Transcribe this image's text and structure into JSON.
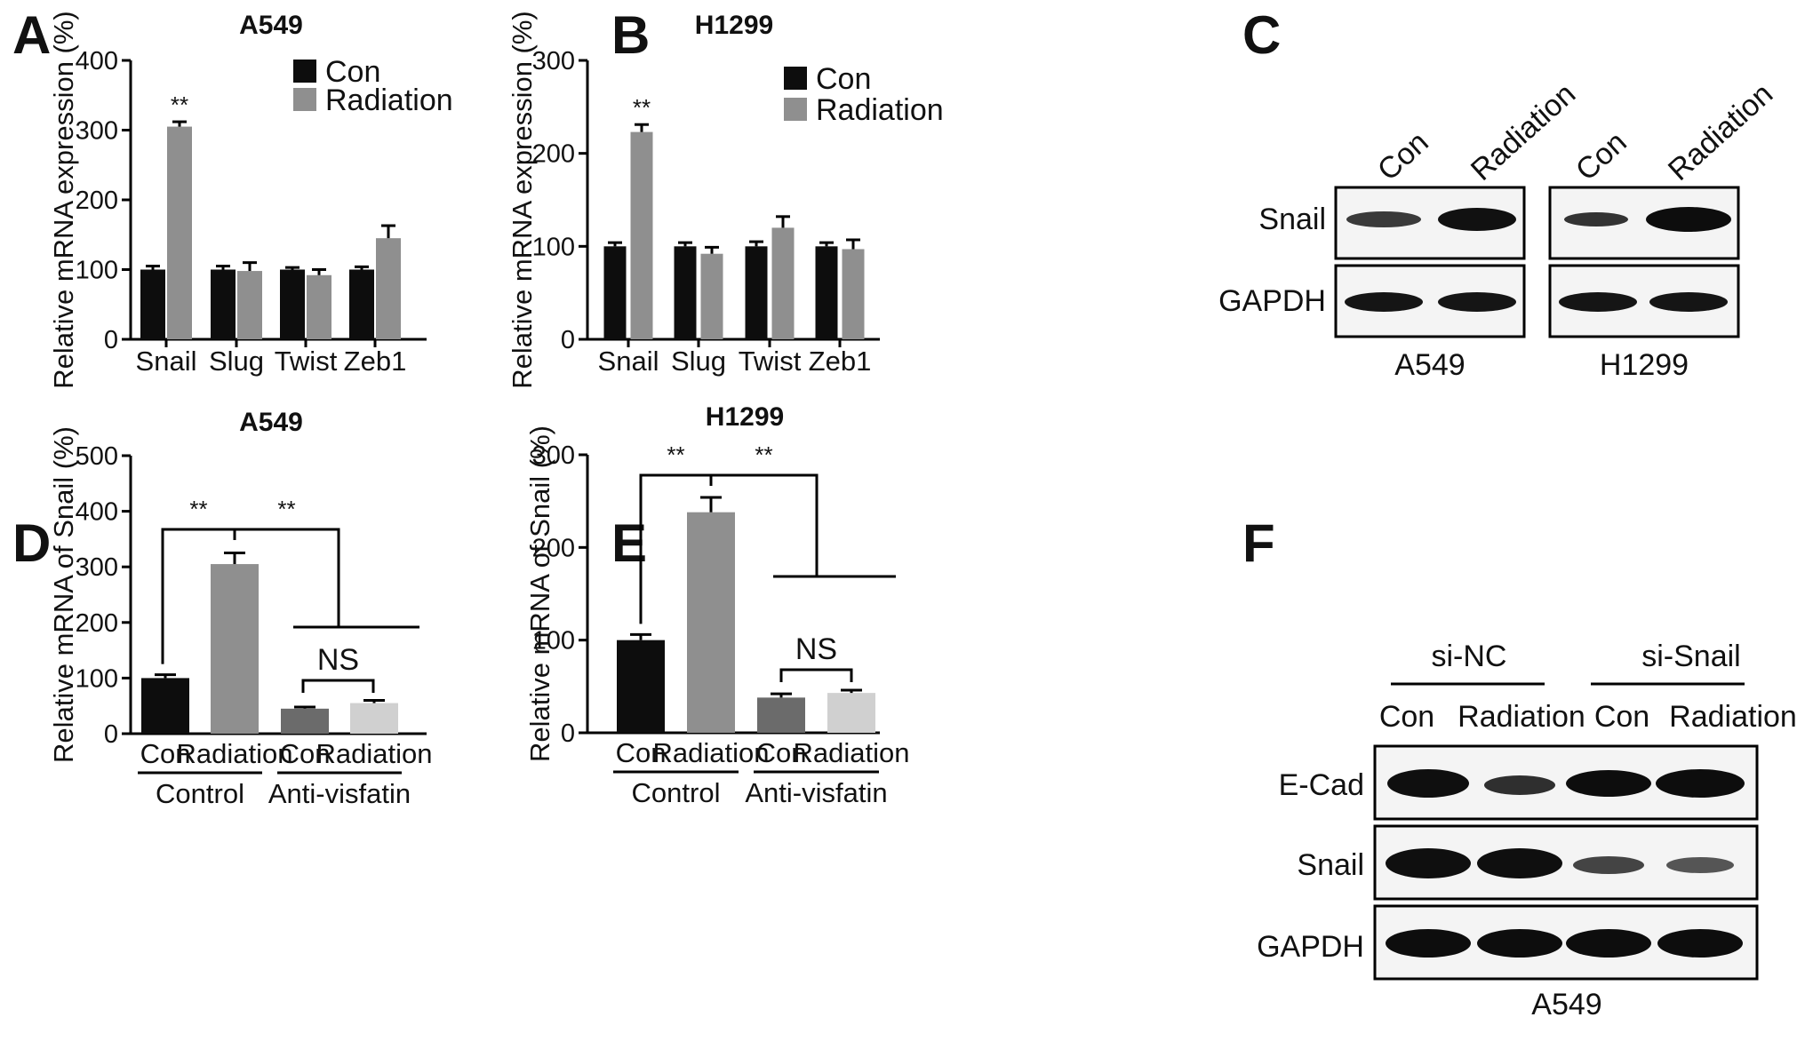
{
  "panels": {
    "A": {
      "letter": "A"
    },
    "B": {
      "letter": "B"
    },
    "C": {
      "letter": "C"
    },
    "D": {
      "letter": "D"
    },
    "E": {
      "letter": "E"
    },
    "F": {
      "letter": "F"
    }
  },
  "colors": {
    "con": "#0d0d0d",
    "radiation": "#8f8f8f",
    "anti_con": "#6b6b6b",
    "anti_radiation": "#d0d0d0"
  },
  "blot_c": {
    "lanes": [
      "Con",
      "Radiation"
    ],
    "rows": [
      "Snail",
      "GAPDH"
    ],
    "cells": [
      "A549",
      "H1299"
    ]
  },
  "blot_f": {
    "groups": [
      "si-NC",
      "si-Snail"
    ],
    "lanes": [
      "Con",
      "Radiation",
      "Con",
      "Radiation"
    ],
    "rows": [
      "E-Cad",
      "Snail",
      "GAPDH"
    ],
    "cell": "A549"
  },
  "chart_data": [
    {
      "id": "A",
      "type": "bar",
      "title": "A549",
      "ylabel": "Relative mRNA expression (%)",
      "xlabel": "",
      "ylim": [
        0,
        400
      ],
      "yticks": [
        0,
        100,
        200,
        300,
        400
      ],
      "categories": [
        "Snail",
        "Slug",
        "Twist",
        "Zeb1"
      ],
      "legend": [
        "Con",
        "Radiation"
      ],
      "legend_position": "top-right",
      "series": [
        {
          "name": "Con",
          "values": [
            100,
            100,
            100,
            100
          ],
          "errors": [
            5,
            5,
            3,
            4
          ]
        },
        {
          "name": "Radiation",
          "values": [
            305,
            98,
            92,
            145
          ],
          "errors": [
            7,
            12,
            8,
            18
          ]
        }
      ],
      "annotations": [
        {
          "text": "**",
          "category": "Snail",
          "series": "Radiation"
        }
      ]
    },
    {
      "id": "B",
      "type": "bar",
      "title": "H1299",
      "ylabel": "Relative mRNA expression (%)",
      "xlabel": "",
      "ylim": [
        0,
        300
      ],
      "yticks": [
        0,
        100,
        200,
        300
      ],
      "categories": [
        "Snail",
        "Slug",
        "Twist",
        "Zeb1"
      ],
      "legend": [
        "Con",
        "Radiation"
      ],
      "legend_position": "top-right",
      "series": [
        {
          "name": "Con",
          "values": [
            100,
            100,
            100,
            100
          ],
          "errors": [
            4,
            4,
            5,
            4
          ]
        },
        {
          "name": "Radiation",
          "values": [
            223,
            92,
            120,
            97
          ],
          "errors": [
            8,
            7,
            12,
            10
          ]
        }
      ],
      "annotations": [
        {
          "text": "**",
          "category": "Snail",
          "series": "Radiation"
        }
      ]
    },
    {
      "id": "D",
      "type": "bar",
      "title": "A549",
      "ylabel": "Relative mRNA of Snail (%)",
      "xlabel": "",
      "ylim": [
        0,
        500
      ],
      "yticks": [
        0,
        100,
        200,
        300,
        400,
        500
      ],
      "categories": [
        "Con",
        "Radiation",
        "Con",
        "Radiation"
      ],
      "groups": [
        {
          "label": "Control",
          "members": [
            0,
            1
          ]
        },
        {
          "label": "Anti-visfatin",
          "members": [
            2,
            3
          ]
        }
      ],
      "values": [
        100,
        305,
        45,
        55
      ],
      "errors": [
        6,
        20,
        3,
        5
      ],
      "annotations": [
        {
          "text": "**",
          "between": [
            0,
            1
          ]
        },
        {
          "text": "**",
          "between": [
            1,
            "Anti-visfatin"
          ]
        },
        {
          "text": "NS",
          "between": [
            2,
            3
          ]
        }
      ]
    },
    {
      "id": "E",
      "type": "bar",
      "title": "H1299",
      "ylabel": "Relative mRNA of Snail (%)",
      "xlabel": "",
      "ylim": [
        0,
        300
      ],
      "yticks": [
        0,
        100,
        200,
        300
      ],
      "categories": [
        "Con",
        "Radiation",
        "Con",
        "Radiation"
      ],
      "groups": [
        {
          "label": "Control",
          "members": [
            0,
            1
          ]
        },
        {
          "label": "Anti-visfatin",
          "members": [
            2,
            3
          ]
        }
      ],
      "values": [
        100,
        238,
        38,
        43
      ],
      "errors": [
        6,
        16,
        4,
        3
      ],
      "annotations": [
        {
          "text": "**",
          "between": [
            0,
            1
          ]
        },
        {
          "text": "**",
          "between": [
            1,
            "Anti-visfatin"
          ]
        },
        {
          "text": "NS",
          "between": [
            2,
            3
          ]
        }
      ]
    }
  ]
}
